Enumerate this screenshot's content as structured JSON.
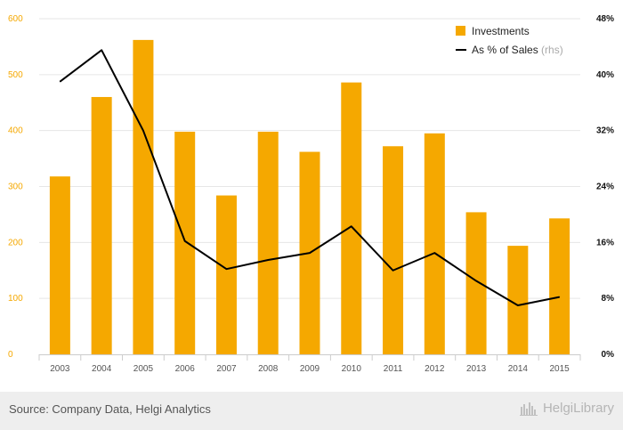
{
  "chart_data": {
    "type": "bar",
    "categories": [
      "2003",
      "2004",
      "2005",
      "2006",
      "2007",
      "2008",
      "2009",
      "2010",
      "2011",
      "2012",
      "2013",
      "2014",
      "2015"
    ],
    "series": [
      {
        "name": "Investments",
        "type": "bar",
        "axis": "left",
        "values": [
          318,
          460,
          562,
          398,
          284,
          398,
          362,
          486,
          372,
          395,
          254,
          194,
          243
        ],
        "color": "#f5a800"
      },
      {
        "name": "As % of Sales",
        "name_note": "(rhs)",
        "type": "line",
        "axis": "right",
        "values": [
          39.0,
          43.5,
          32.0,
          16.2,
          12.2,
          13.5,
          14.5,
          18.3,
          12.0,
          14.5,
          10.5,
          7.0,
          8.2
        ],
        "color": "#000000"
      }
    ],
    "y_left": {
      "min": 0,
      "max": 600,
      "ticks": [
        "0",
        "100",
        "200",
        "300",
        "400",
        "500",
        "600"
      ]
    },
    "y_right": {
      "min": 0,
      "max": 48,
      "ticks": [
        "0%",
        "8%",
        "16%",
        "24%",
        "32%",
        "40%",
        "48%"
      ]
    },
    "grid": true,
    "legend_position": "top-right"
  },
  "footer": {
    "source": "Source: Company Data, Helgi Analytics",
    "brand": "HelgiLibrary"
  }
}
